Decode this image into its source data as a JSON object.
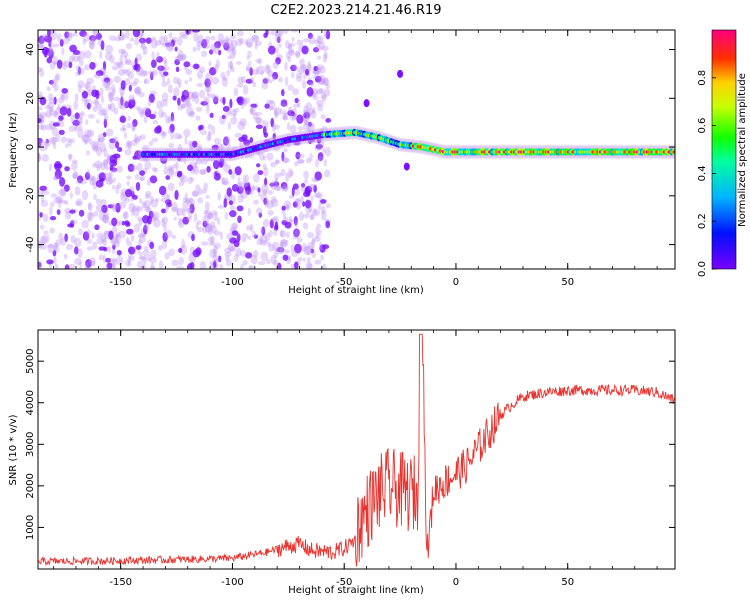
{
  "title": "C2E2.2023.214.21.46.R19",
  "chart_data": [
    {
      "type": "heatmap",
      "panel": "spectrogram",
      "xlabel": "Height of straight line (km)",
      "ylabel": "Frequency (Hz)",
      "xlim": [
        -187,
        98
      ],
      "ylim": [
        -50,
        48
      ],
      "xticks": [
        -150,
        -100,
        -50,
        0,
        50
      ],
      "yticks": [
        -40,
        -20,
        0,
        20,
        40
      ],
      "colorbar": {
        "label": "Normalized spectral amplitude",
        "range": [
          0,
          1
        ],
        "ticks": [
          0.0,
          0.2,
          0.4,
          0.6,
          0.8
        ]
      },
      "ridge": [
        [
          -140,
          -3
        ],
        [
          -100,
          -3
        ],
        [
          -75,
          3
        ],
        [
          -60,
          5
        ],
        [
          -45,
          6
        ],
        [
          -35,
          4
        ],
        [
          -25,
          1
        ],
        [
          -15,
          0
        ],
        [
          -5,
          -2
        ],
        [
          20,
          -2
        ],
        [
          60,
          -2
        ],
        [
          98,
          -2
        ]
      ],
      "features": [
        [
          -25,
          30
        ],
        [
          -40,
          18
        ],
        [
          -22,
          -8
        ]
      ]
    },
    {
      "type": "line",
      "panel": "snr",
      "xlabel": "Height of straight line (km)",
      "ylabel": "SNR (10 * v/v)",
      "xlim": [
        -187,
        98
      ],
      "ylim": [
        0,
        5750
      ],
      "xticks": [
        -150,
        -100,
        -50,
        0,
        50
      ],
      "yticks": [
        1000,
        2000,
        3000,
        4000,
        5000
      ],
      "color": "#e8332f",
      "series": [
        {
          "name": "SNR",
          "x": [
            -187,
            -150,
            -120,
            -100,
            -85,
            -75,
            -70,
            -65,
            -60,
            -55,
            -50,
            -45,
            -40,
            -35,
            -30,
            -25,
            -20,
            -16,
            -15,
            -13,
            -10,
            -5,
            0,
            5,
            10,
            15,
            20,
            25,
            30,
            40,
            50,
            60,
            70,
            80,
            90,
            98
          ],
          "y": [
            180,
            200,
            230,
            260,
            400,
            550,
            600,
            450,
            420,
            400,
            500,
            700,
            1200,
            1600,
            1800,
            1700,
            1600,
            1700,
            5650,
            250,
            1900,
            2100,
            2300,
            2500,
            2900,
            3300,
            3700,
            3950,
            4150,
            4250,
            4300,
            4300,
            4300,
            4300,
            4250,
            4050
          ]
        }
      ]
    }
  ]
}
